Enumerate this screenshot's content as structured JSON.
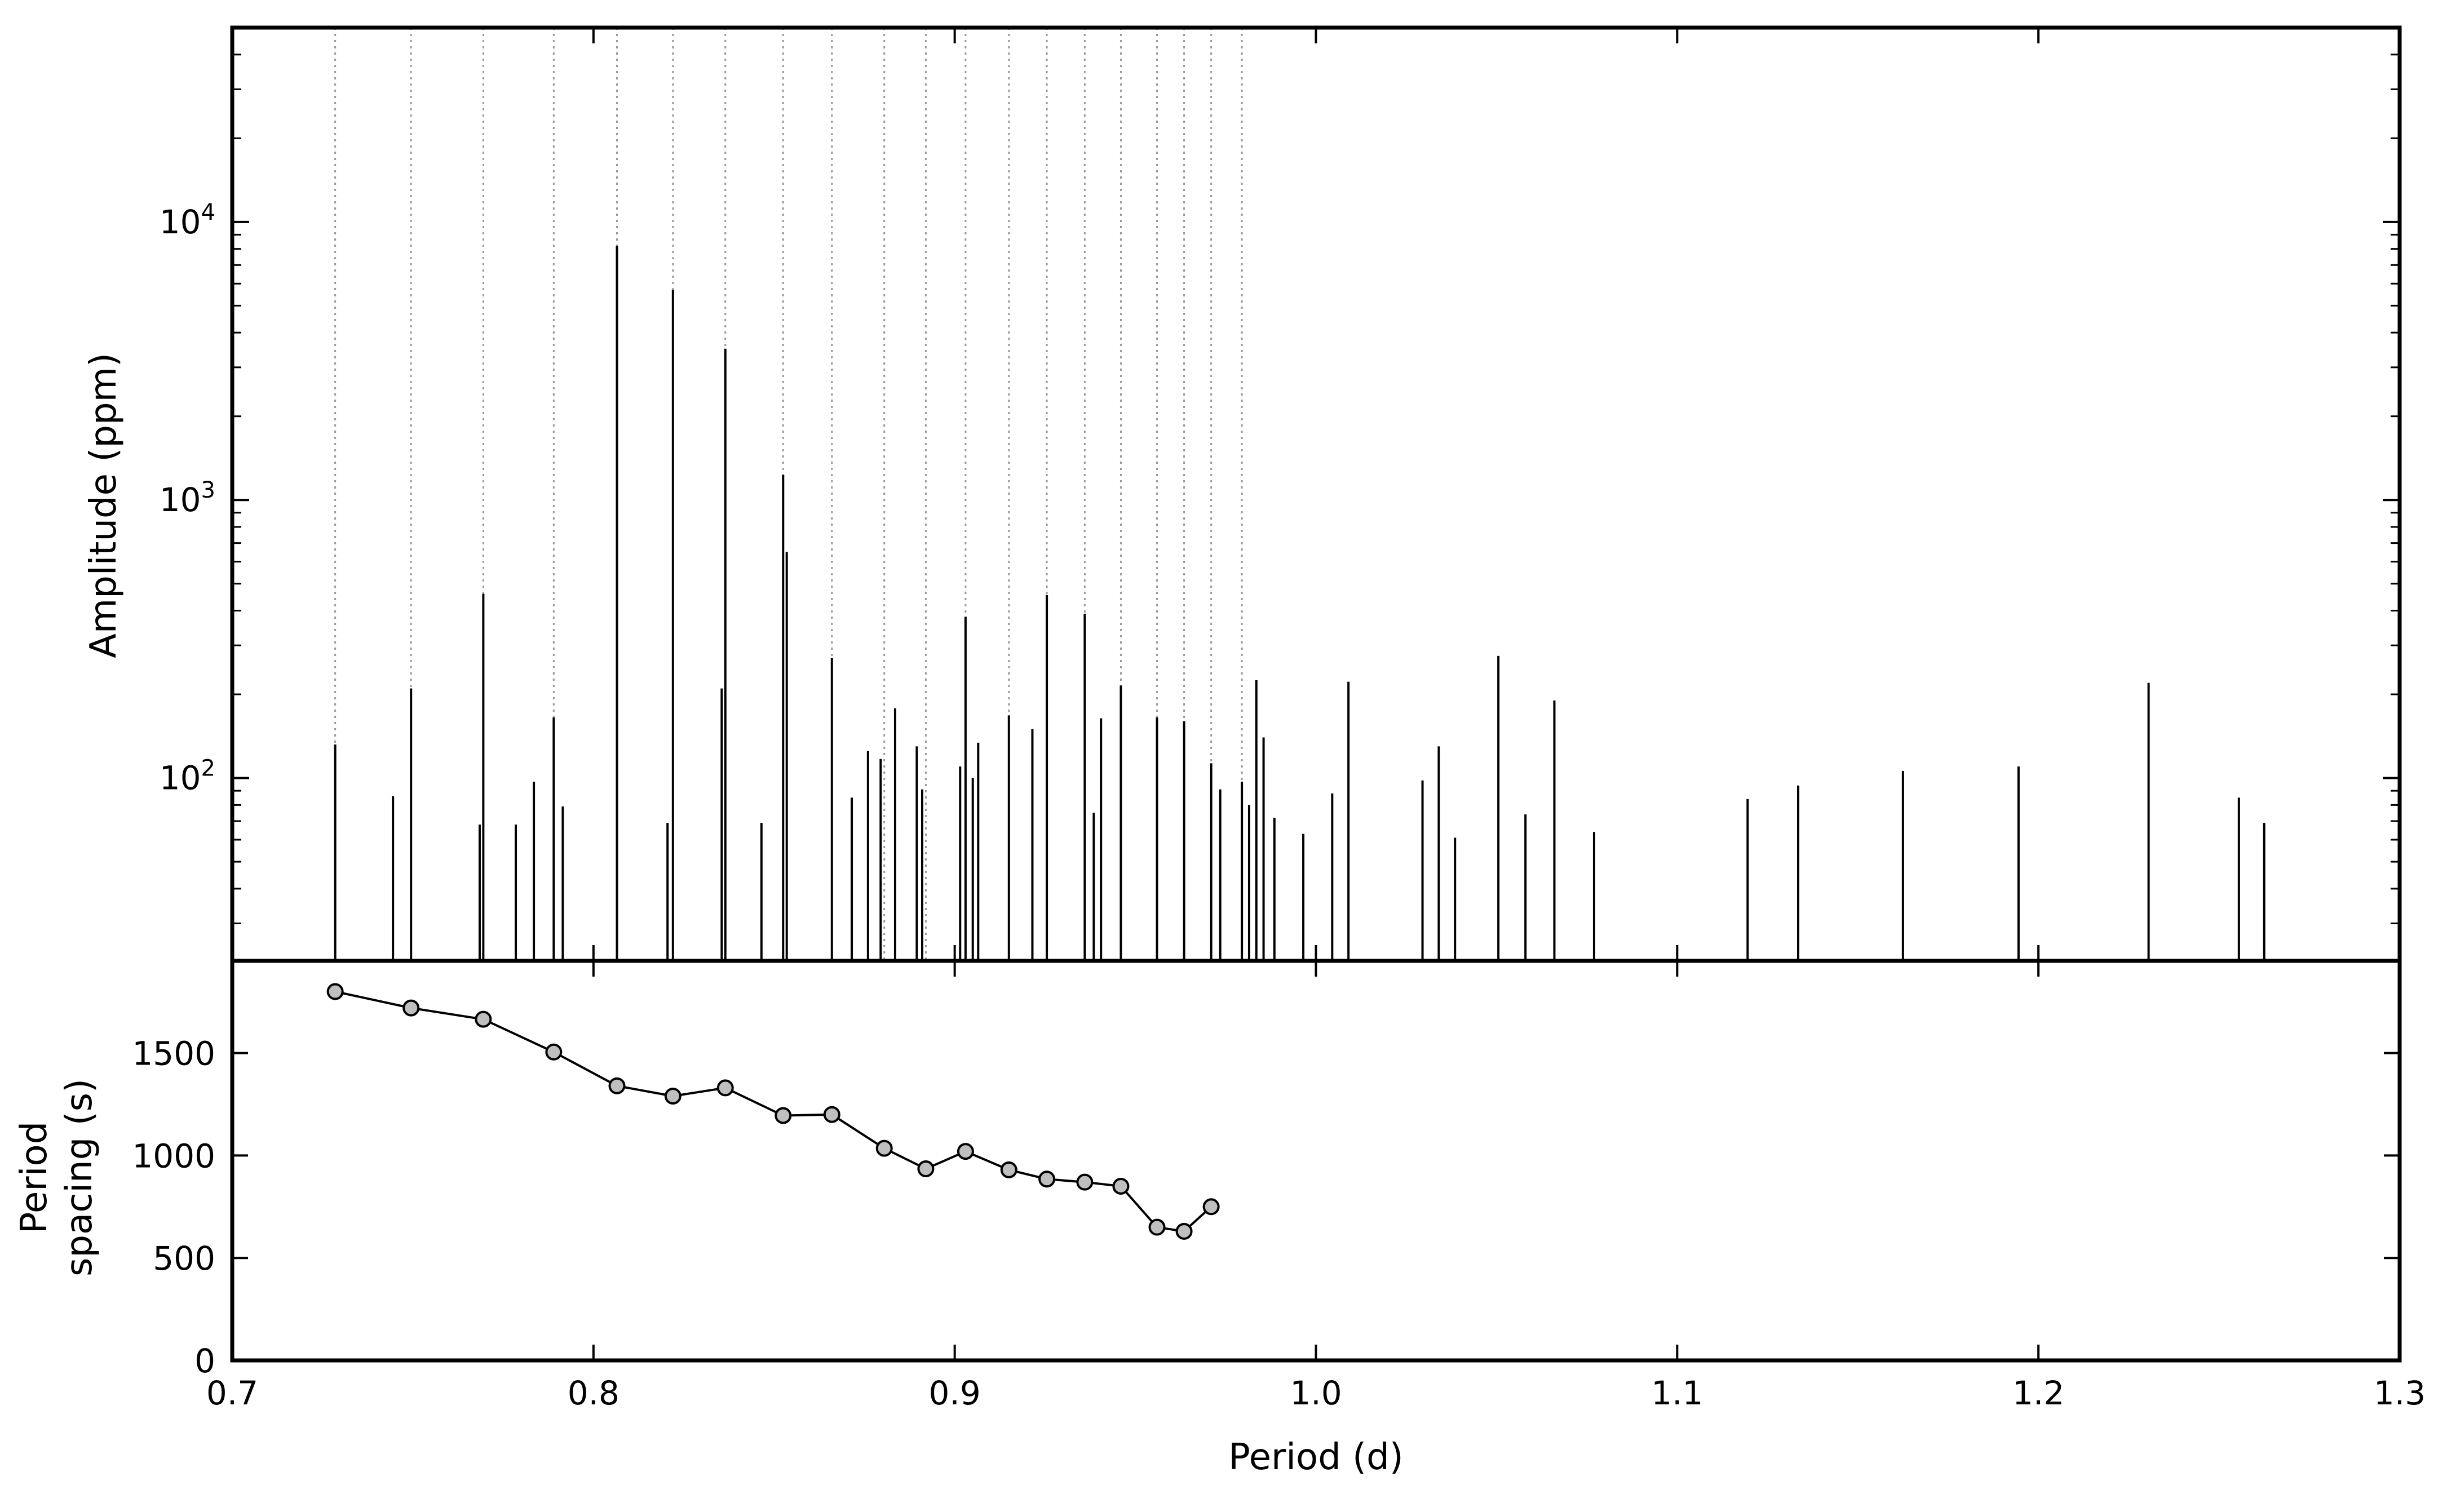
{
  "chart_data": [
    {
      "type": "bar",
      "panel": "top",
      "xlabel": "",
      "ylabel": "Amplitude (ppm)",
      "xlim": [
        0.7,
        1.3
      ],
      "ylim": [
        22,
        50000
      ],
      "yscale": "log",
      "yticks": [
        {
          "value": 100,
          "base": "10",
          "exp": "2"
        },
        {
          "value": 1000,
          "base": "10",
          "exp": "3"
        },
        {
          "value": 10000,
          "base": "10",
          "exp": "4"
        }
      ],
      "grid": false,
      "vertical_reference_lines": [
        0.7285,
        0.7495,
        0.7695,
        0.789,
        0.8065,
        0.822,
        0.8365,
        0.8525,
        0.866,
        0.8805,
        0.892,
        0.903,
        0.915,
        0.9255,
        0.936,
        0.946,
        0.956,
        0.9635,
        0.971,
        0.9795
      ],
      "series": [
        {
          "x": [
            0.7285,
            0.7445,
            0.7495,
            0.7685,
            0.7695,
            0.7785,
            0.7835,
            0.789,
            0.7915,
            0.8065,
            0.8205,
            0.822,
            0.8355,
            0.8365,
            0.8465,
            0.8525,
            0.8535,
            0.866,
            0.8715,
            0.876,
            0.8795,
            0.8835,
            0.8895,
            0.891,
            0.9015,
            0.903,
            0.905,
            0.9065,
            0.915,
            0.9215,
            0.9255,
            0.936,
            0.9385,
            0.9405,
            0.946,
            0.956,
            0.9635,
            0.971,
            0.9735,
            0.9795,
            0.9815,
            0.9835,
            0.9855,
            0.9885,
            0.9965,
            1.0045,
            1.009,
            1.0295,
            1.034,
            1.0385,
            1.0505,
            1.058,
            1.066,
            1.077,
            1.1195,
            1.1335,
            1.1625,
            1.1945,
            1.2305,
            1.2555,
            1.2625
          ],
          "values": [
            132,
            86,
            210,
            68,
            460,
            68,
            97,
            165,
            79,
            8200,
            69,
            5700,
            210,
            3500,
            69,
            1230,
            650,
            270,
            85,
            125,
            117,
            178,
            130,
            91,
            110,
            380,
            100,
            134,
            168,
            150,
            455,
            390,
            75,
            164,
            215,
            165,
            160,
            113,
            91,
            97,
            80,
            225,
            140,
            72,
            63,
            88,
            222,
            98,
            130,
            61,
            275,
            74,
            190,
            64,
            84,
            94,
            106,
            110,
            220,
            85,
            69
          ]
        }
      ]
    },
    {
      "type": "line",
      "panel": "bottom",
      "xlabel": "Period (d)",
      "ylabel": "Period spacing (s)",
      "ylabel_lines": [
        "Period",
        "spacing (s)"
      ],
      "xlim": [
        0.7,
        1.3
      ],
      "ylim": [
        0,
        1950
      ],
      "xticks": [
        0.7,
        0.8,
        0.9,
        1.0,
        1.1,
        1.2,
        1.3
      ],
      "xtick_labels": [
        "0.7",
        "0.8",
        "0.9",
        "1.0",
        "1.1",
        "1.2",
        "1.3"
      ],
      "yticks": [
        0,
        500,
        1000,
        1500
      ],
      "ytick_labels": [
        "0",
        "500",
        "1000",
        "1500"
      ],
      "grid": false,
      "series": [
        {
          "marker": "circle",
          "x": [
            0.7285,
            0.7495,
            0.7695,
            0.789,
            0.8065,
            0.822,
            0.8365,
            0.8525,
            0.866,
            0.8805,
            0.892,
            0.903,
            0.915,
            0.9255,
            0.936,
            0.946,
            0.956,
            0.9635,
            0.971
          ],
          "y": [
            1800,
            1720,
            1665,
            1505,
            1340,
            1290,
            1330,
            1195,
            1200,
            1035,
            935,
            1020,
            930,
            885,
            870,
            850,
            650,
            630,
            750
          ]
        }
      ]
    }
  ],
  "colors": {
    "bar": "#000000",
    "line": "#000000",
    "marker_fill": "#bfbfbf",
    "reference_line": "#999999",
    "frame": "#000000"
  }
}
